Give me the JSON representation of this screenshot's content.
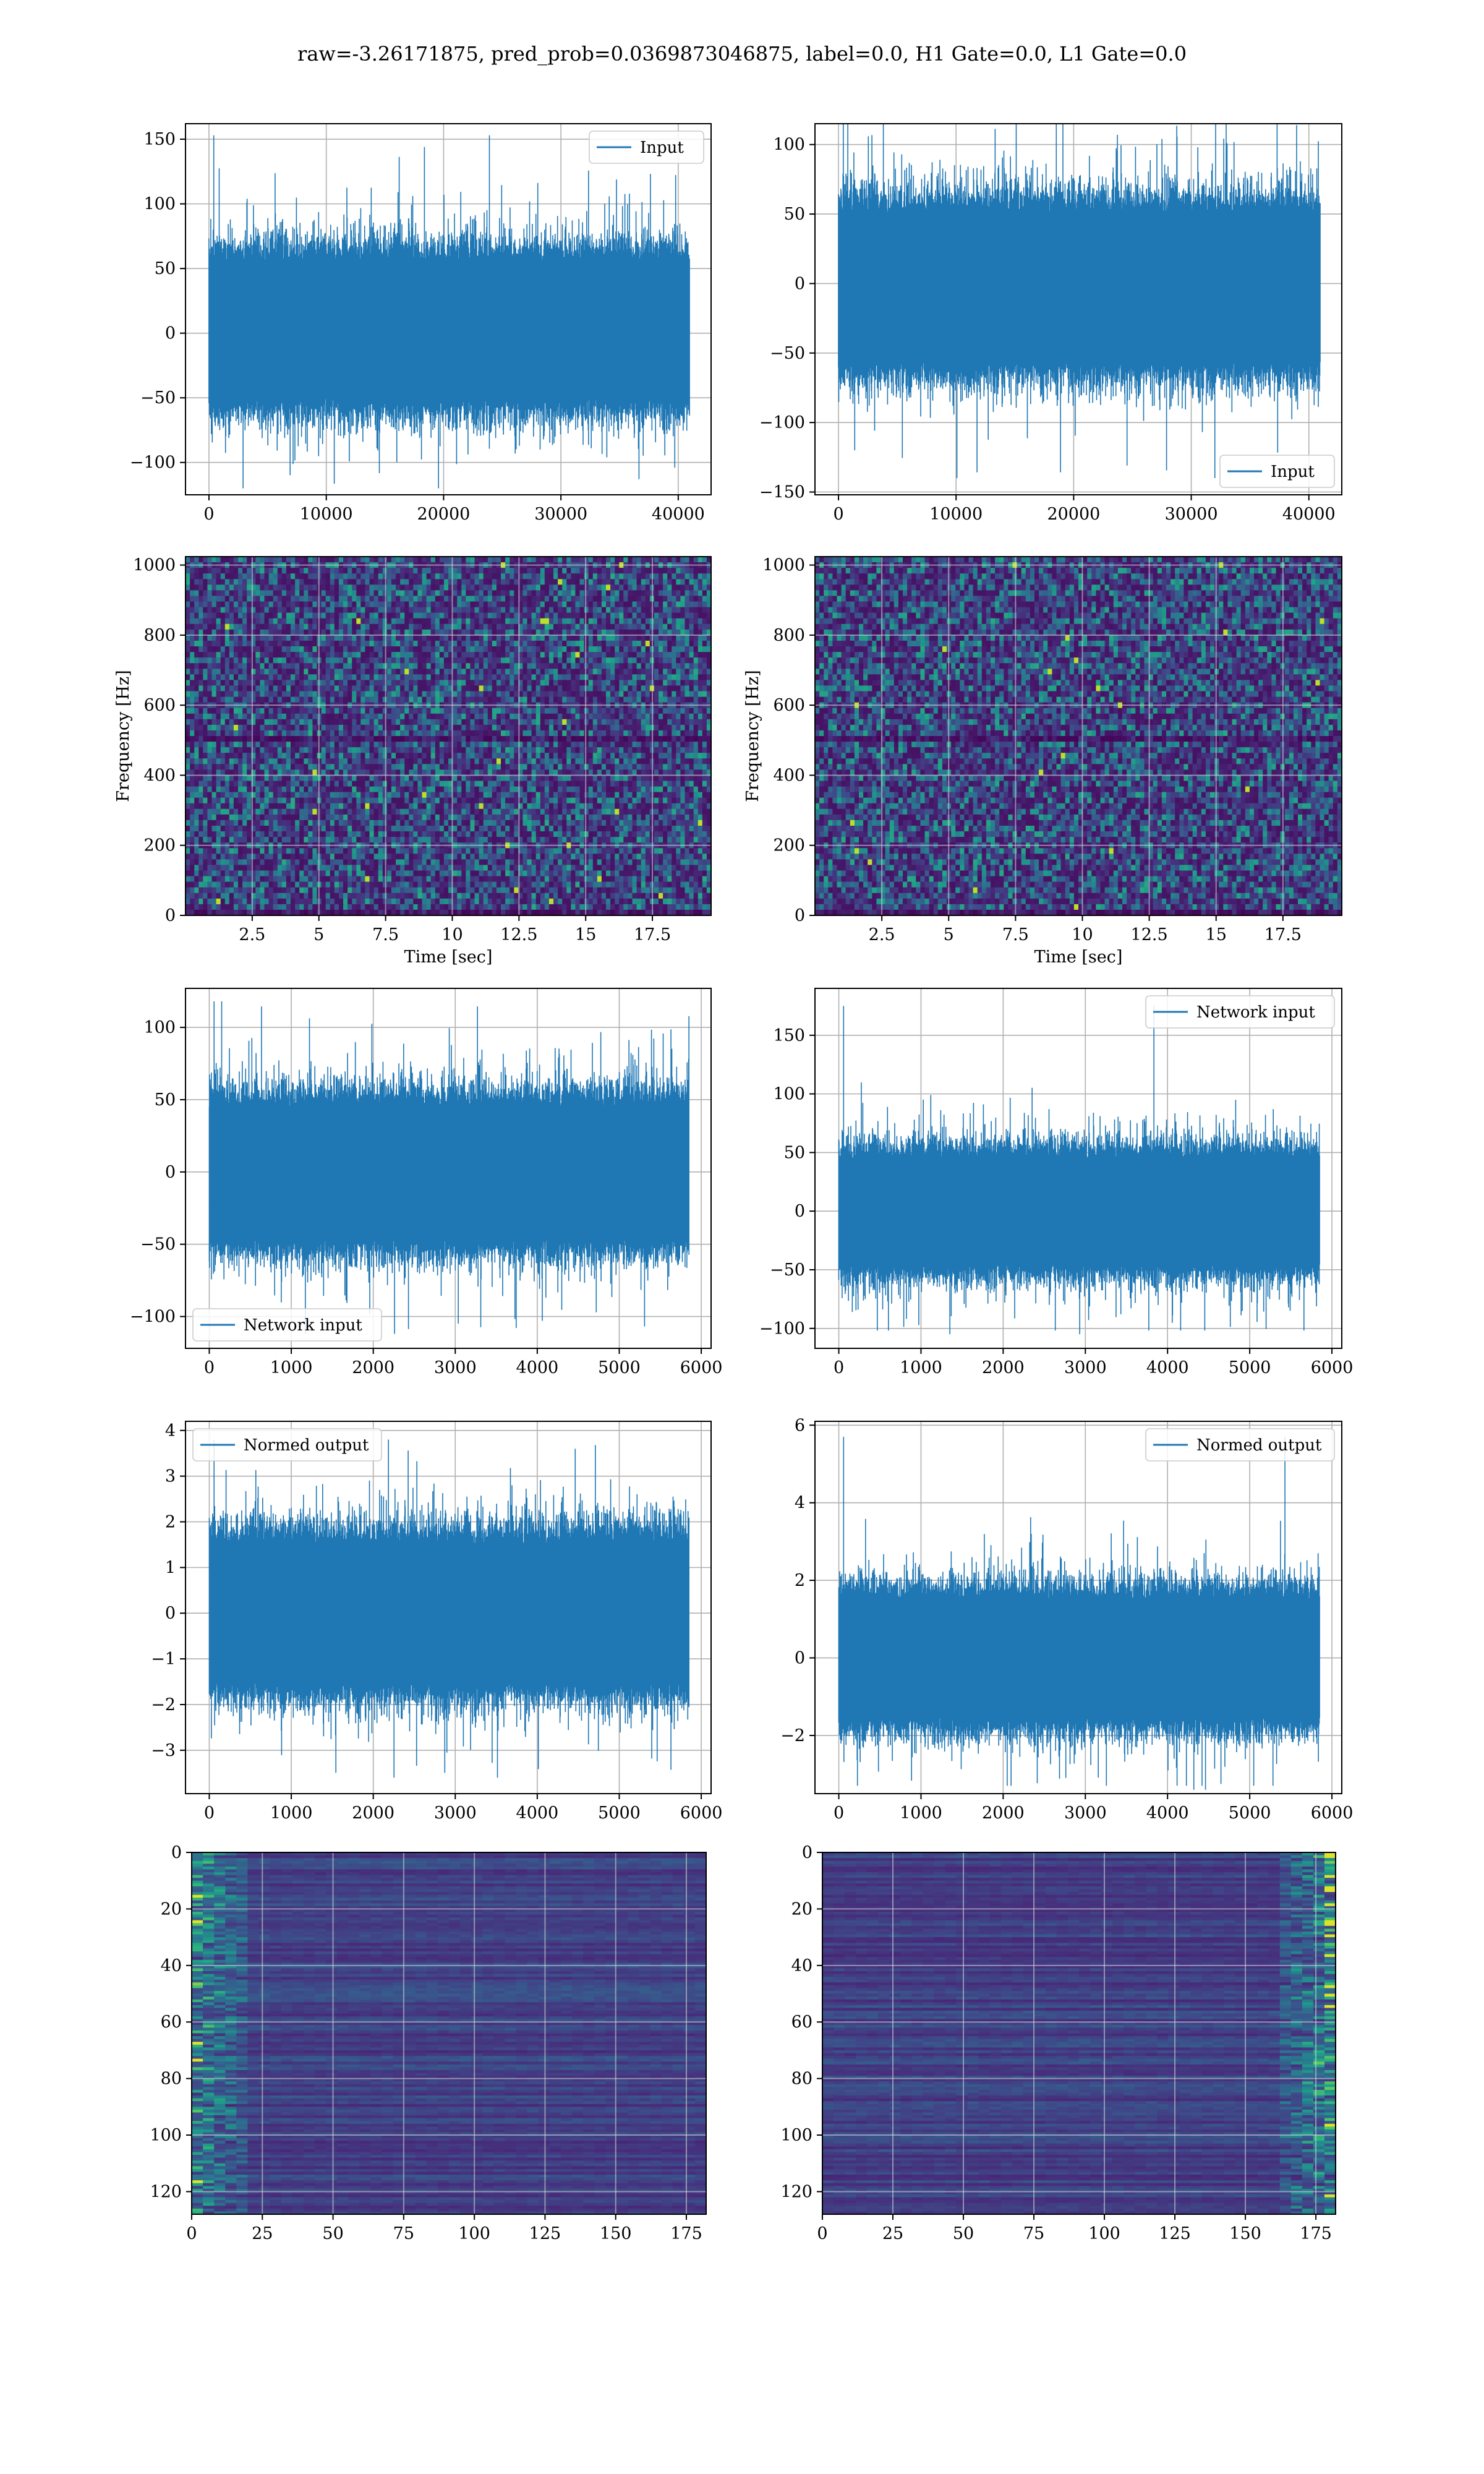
{
  "suptitle": "raw=-3.26171875, pred_prob=0.0369873046875, label=0.0, H1 Gate=0.0, L1 Gate=0.0",
  "colors": {
    "line": "#1f77b4",
    "grid": "#b0b0b0",
    "viridis_low": "#440154",
    "viridis_high": "#fde725"
  },
  "chart_data": [
    {
      "id": "raw-h1",
      "type": "line",
      "legend": "Input",
      "legend_loc": "upper right",
      "xlim": [
        -2000,
        42800
      ],
      "ylim": [
        -125,
        162
      ],
      "xticks": [
        0,
        10000,
        20000,
        30000,
        40000
      ],
      "yticks": [
        -100,
        -50,
        0,
        50,
        100,
        150
      ],
      "n": 40960,
      "band": [
        -50,
        55
      ],
      "extreme": [
        -120,
        153
      ],
      "grid": true
    },
    {
      "id": "raw-l1",
      "type": "line",
      "legend": "Input",
      "legend_loc": "lower right",
      "xlim": [
        -2000,
        42800
      ],
      "ylim": [
        -152,
        115
      ],
      "xticks": [
        0,
        10000,
        20000,
        30000,
        40000
      ],
      "yticks": [
        -150,
        -100,
        -50,
        0,
        50,
        100
      ],
      "n": 40960,
      "band": [
        -55,
        50
      ],
      "extreme": [
        -140,
        120
      ],
      "grid": true
    },
    {
      "id": "spec-h1",
      "type": "heatmap",
      "xlabel": "Time [sec]",
      "ylabel": "Frequency [Hz]",
      "xlim": [
        0,
        19.7
      ],
      "ylim": [
        0,
        1024
      ],
      "xticks": [
        2.5,
        5.0,
        7.5,
        10.0,
        12.5,
        15.0,
        17.5
      ],
      "yticks": [
        0,
        200,
        400,
        600,
        800,
        1000
      ],
      "colormap": "viridis",
      "grid": true
    },
    {
      "id": "spec-l1",
      "type": "heatmap",
      "xlabel": "Time [sec]",
      "ylabel": "Frequency [Hz]",
      "xlim": [
        0,
        19.7
      ],
      "ylim": [
        0,
        1024
      ],
      "xticks": [
        2.5,
        5.0,
        7.5,
        10.0,
        12.5,
        15.0,
        17.5
      ],
      "yticks": [
        0,
        200,
        400,
        600,
        800,
        1000
      ],
      "colormap": "viridis",
      "grid": true
    },
    {
      "id": "net-h1",
      "type": "line",
      "legend": "Network input",
      "legend_loc": "lower left",
      "xlim": [
        -290,
        6120
      ],
      "ylim": [
        -122,
        127
      ],
      "xticks": [
        0,
        1000,
        2000,
        3000,
        4000,
        5000,
        6000
      ],
      "yticks": [
        -100,
        -50,
        0,
        50,
        100
      ],
      "n": 5850,
      "band": [
        -45,
        45
      ],
      "extreme": [
        -112,
        118
      ],
      "grid": true
    },
    {
      "id": "net-l1",
      "type": "line",
      "legend": "Network input",
      "legend_loc": "upper right",
      "xlim": [
        -290,
        6120
      ],
      "ylim": [
        -117,
        190
      ],
      "xticks": [
        0,
        1000,
        2000,
        3000,
        4000,
        5000,
        6000
      ],
      "yticks": [
        -100,
        -50,
        0,
        50,
        100,
        150
      ],
      "n": 5850,
      "band": [
        -45,
        45
      ],
      "extreme": [
        -105,
        175
      ],
      "grid": true
    },
    {
      "id": "norm-h1",
      "type": "line",
      "legend": "Normed output",
      "legend_loc": "upper left",
      "xlim": [
        -290,
        6120
      ],
      "ylim": [
        -3.95,
        4.2
      ],
      "xticks": [
        0,
        1000,
        2000,
        3000,
        4000,
        5000,
        6000
      ],
      "yticks": [
        -3,
        -2,
        -1,
        0,
        1,
        2,
        3,
        4
      ],
      "n": 5850,
      "band": [
        -1.5,
        1.5
      ],
      "extreme": [
        -3.6,
        3.8
      ],
      "grid": true
    },
    {
      "id": "norm-l1",
      "type": "line",
      "legend": "Normed output",
      "legend_loc": "upper right",
      "xlim": [
        -290,
        6120
      ],
      "ylim": [
        -3.5,
        6.1
      ],
      "xticks": [
        0,
        1000,
        2000,
        3000,
        4000,
        5000,
        6000
      ],
      "yticks": [
        -2,
        0,
        2,
        4,
        6
      ],
      "n": 5850,
      "band": [
        -1.5,
        1.5
      ],
      "extreme": [
        -3.4,
        5.7
      ],
      "grid": true
    },
    {
      "id": "feat-h1",
      "type": "heatmap",
      "xlim": [
        0,
        182
      ],
      "ylim": [
        128,
        0
      ],
      "xticks": [
        0,
        25,
        50,
        75,
        100,
        125,
        150,
        175
      ],
      "yticks": [
        0,
        20,
        40,
        60,
        80,
        100,
        120
      ],
      "colormap": "viridis",
      "hot_side": "left",
      "grid": true
    },
    {
      "id": "feat-l1",
      "type": "heatmap",
      "xlim": [
        0,
        182
      ],
      "ylim": [
        128,
        0
      ],
      "xticks": [
        0,
        25,
        50,
        75,
        100,
        125,
        150,
        175
      ],
      "yticks": [
        0,
        20,
        40,
        60,
        80,
        100,
        120
      ],
      "colormap": "viridis",
      "hot_side": "right",
      "grid": true
    }
  ]
}
